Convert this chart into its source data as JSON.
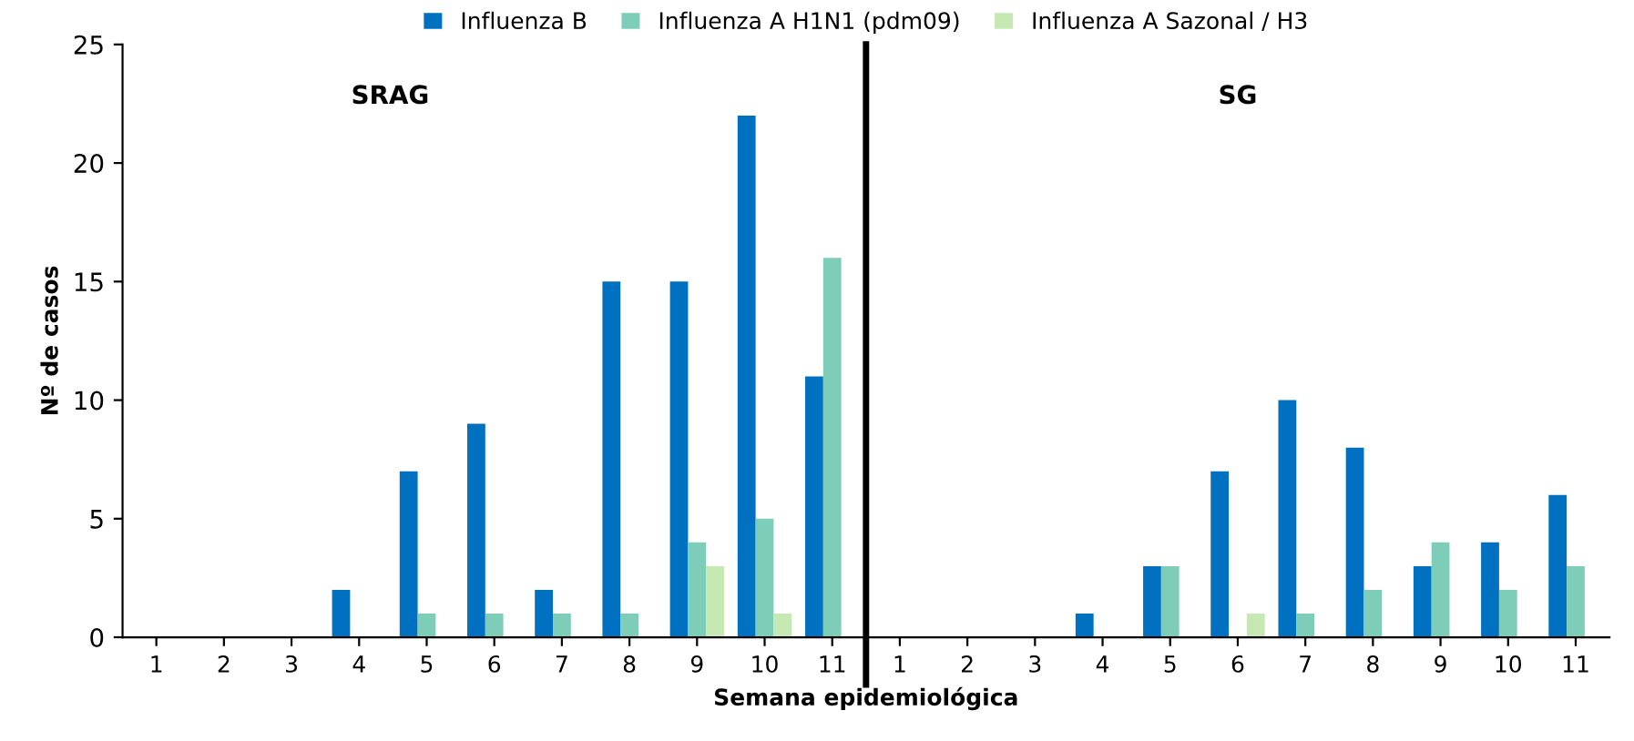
{
  "chart_data": {
    "type": "bar",
    "xlabel": "Semana epidemiológica",
    "ylabel": "Nº de casos",
    "categories": [
      "1",
      "2",
      "3",
      "4",
      "5",
      "6",
      "7",
      "8",
      "9",
      "10",
      "11",
      "1",
      "2",
      "3",
      "4",
      "5",
      "6",
      "7",
      "8",
      "9",
      "10",
      "11"
    ],
    "series": [
      {
        "name": "Influenza B",
        "color": "#0070c0",
        "values": [
          0,
          0,
          0,
          2,
          7,
          9,
          2,
          15,
          15,
          22,
          11,
          0,
          0,
          0,
          1,
          3,
          7,
          10,
          8,
          3,
          4,
          6
        ]
      },
      {
        "name": "Influenza A H1N1 (pdm09)",
        "color": "#7dcdb9",
        "values": [
          0,
          0,
          0,
          0,
          1,
          1,
          1,
          1,
          4,
          5,
          16,
          0,
          0,
          0,
          0,
          3,
          0,
          1,
          2,
          4,
          2,
          3
        ]
      },
      {
        "name": "Influenza A Sazonal / H3",
        "color": "#c6e9b4",
        "values": [
          0,
          0,
          0,
          0,
          0,
          0,
          0,
          0,
          3,
          1,
          0,
          0,
          0,
          0,
          0,
          0,
          1,
          0,
          0,
          0,
          0,
          0
        ]
      }
    ],
    "ylim": [
      0,
      25
    ],
    "yticks": [
      0,
      5,
      10,
      15,
      20,
      25
    ],
    "annotations": [
      "SRAG",
      "SG"
    ],
    "legend": "top",
    "grid": false
  }
}
